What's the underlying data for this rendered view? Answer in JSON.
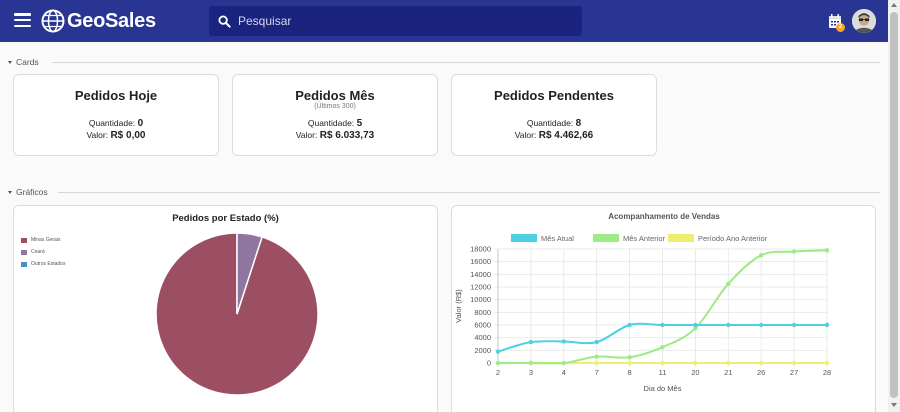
{
  "app": {
    "name": "GeoSales",
    "brand_color": "#283593",
    "search_bg": "#1a237e"
  },
  "header": {
    "search_placeholder": "Pesquisar",
    "notification_count": "2",
    "icons": [
      "menu-icon",
      "search-icon",
      "calendar-icon",
      "avatar"
    ]
  },
  "sections": {
    "cards_label": "Cards",
    "charts_label": "Gráficos"
  },
  "cards": [
    {
      "title": "Pedidos Hoje",
      "subtitle": "",
      "qty_label": "Quantidade:",
      "qty": "0",
      "value_label": "Valor:",
      "value": "R$ 0,00"
    },
    {
      "title": "Pedidos Mês",
      "subtitle": "(Últimos 300)",
      "qty_label": "Quantidade:",
      "qty": "5",
      "value_label": "Valor:",
      "value": "R$ 6.033,73"
    },
    {
      "title": "Pedidos Pendentes",
      "subtitle": "",
      "qty_label": "Quantidade:",
      "qty": "8",
      "value_label": "Valor:",
      "value": "R$ 4.462,66"
    }
  ],
  "chart_data": [
    {
      "type": "pie",
      "title": "Pedidos por Estado (%)",
      "labels": [
        "Minas Gerais",
        "Ceará",
        "Outros Estados"
      ],
      "values": [
        95,
        5,
        0
      ],
      "colors": [
        "#9c4e62",
        "#8e76a0",
        "#4a90c0"
      ],
      "legend_position": "top-left"
    },
    {
      "type": "line",
      "title": "Acompanhamento de Vendas",
      "xlabel": "Dia do Mês",
      "ylabel": "Valor (R$)",
      "categories": [
        "2",
        "3",
        "4",
        "7",
        "8",
        "11",
        "20",
        "21",
        "26",
        "27",
        "28"
      ],
      "ylim": [
        0,
        18000
      ],
      "yticks": [
        0,
        2000,
        4000,
        6000,
        8000,
        10000,
        12000,
        14000,
        16000,
        18000
      ],
      "grid": true,
      "legend_position": "top",
      "series": [
        {
          "name": "Mês Atual",
          "color": "#4dd0e1",
          "values": [
            1800,
            3300,
            3400,
            3300,
            6000,
            6000,
            6000,
            6000,
            6000,
            6000,
            6000
          ]
        },
        {
          "name": "Mês Anterior",
          "color": "#9ceb85",
          "values": [
            0,
            0,
            0,
            1000,
            900,
            2500,
            5500,
            12500,
            17000,
            17600,
            17800
          ]
        },
        {
          "name": "Período Ano Anterior",
          "color": "#eeee70",
          "values": [
            0,
            0,
            0,
            0,
            0,
            0,
            0,
            0,
            0,
            0,
            0
          ]
        }
      ]
    }
  ]
}
